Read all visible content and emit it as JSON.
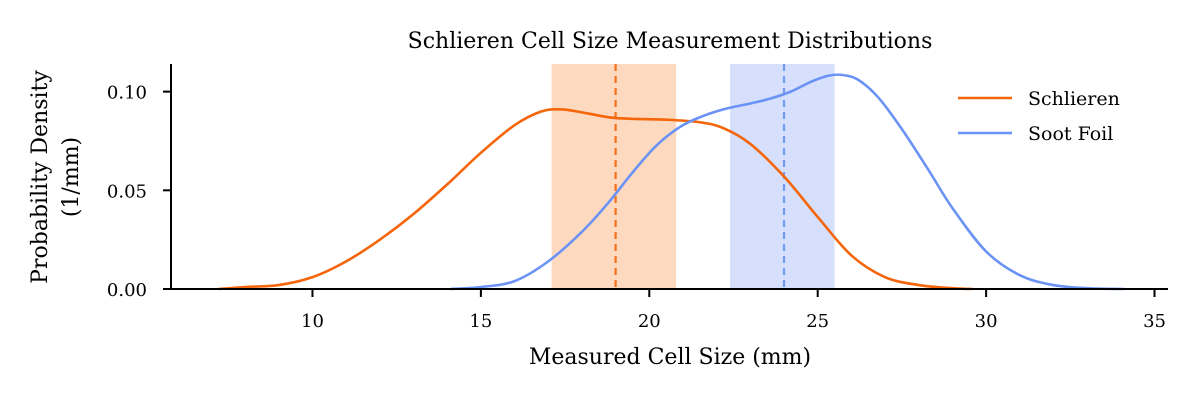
{
  "chart_data": {
    "type": "line",
    "title": "Schlieren Cell Size Measurement Distributions",
    "xlabel": "Measured Cell Size (mm)",
    "ylabel": [
      "Probability Density",
      "(1/mm)"
    ],
    "xlim": [
      5.8,
      35.4
    ],
    "ylim": [
      0,
      0.114
    ],
    "xticks": [
      10,
      15,
      20,
      25,
      30,
      35
    ],
    "yticks": [
      0.0,
      0.05,
      0.1
    ],
    "ytick_labels": [
      "0.00",
      "0.05",
      "0.10"
    ],
    "legend_position": "top-right",
    "grid": false,
    "series": [
      {
        "name": "Schlieren",
        "color": "#f5650a",
        "band_color": "#fcd9bf",
        "mean": 19.0,
        "band": [
          17.1,
          20.8
        ],
        "x": [
          7.2,
          8.0,
          9.0,
          10.0,
          11.0,
          12.0,
          13.0,
          14.0,
          15.0,
          16.0,
          16.8,
          17.4,
          18.0,
          18.8,
          19.5,
          20.5,
          21.5,
          22.2,
          23.0,
          24.0,
          25.0,
          26.0,
          27.0,
          28.0,
          29.0,
          29.6
        ],
        "y": [
          0.0,
          0.001,
          0.002,
          0.006,
          0.014,
          0.025,
          0.038,
          0.053,
          0.069,
          0.083,
          0.09,
          0.091,
          0.0895,
          0.087,
          0.0862,
          0.0858,
          0.0845,
          0.0815,
          0.0735,
          0.057,
          0.0365,
          0.017,
          0.006,
          0.002,
          0.0004,
          0.0
        ]
      },
      {
        "name": "Soot Foil",
        "color": "#6b93f5",
        "band_color": "#d6e0fc",
        "mean": 24.0,
        "band": [
          22.4,
          25.5
        ],
        "x": [
          14.1,
          15.0,
          16.0,
          17.0,
          18.0,
          18.8,
          19.5,
          20.2,
          20.9,
          21.5,
          22.2,
          23.0,
          23.6,
          24.2,
          24.8,
          25.3,
          25.7,
          26.2,
          26.8,
          27.5,
          28.3,
          29.0,
          30.0,
          31.0,
          32.0,
          33.0,
          34.1
        ],
        "y": [
          0.0,
          0.001,
          0.004,
          0.014,
          0.029,
          0.044,
          0.059,
          0.0725,
          0.082,
          0.087,
          0.091,
          0.094,
          0.0965,
          0.1,
          0.105,
          0.108,
          0.1085,
          0.106,
          0.097,
          0.081,
          0.06,
          0.041,
          0.019,
          0.007,
          0.002,
          0.0004,
          0.0
        ]
      }
    ]
  }
}
